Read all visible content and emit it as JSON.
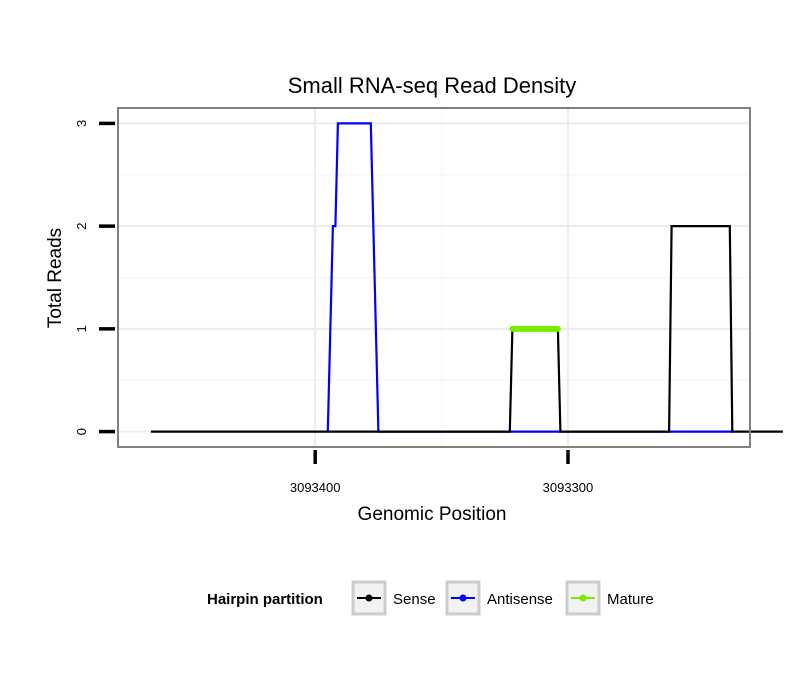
{
  "chart_data": {
    "type": "line",
    "title": "Small RNA-seq Read Density",
    "xlabel": "Genomic Position",
    "ylabel": "Total Reads",
    "x_reversed": true,
    "xlim": [
      3093478,
      3093228
    ],
    "ylim": [
      -0.15,
      3.15
    ],
    "x_ticks": [
      3093400,
      3093300
    ],
    "x_tick_labels": [
      "3093400",
      "3093300"
    ],
    "y_ticks": [
      0,
      1,
      2,
      3
    ],
    "y_tick_labels": [
      "0",
      "1",
      "2",
      "3"
    ],
    "grid": true,
    "legend": {
      "title": "Hairpin partition",
      "position": "bottom",
      "entries": [
        {
          "name": "Sense",
          "color": "#000000"
        },
        {
          "name": "Antisense",
          "color": "#0000ff"
        },
        {
          "name": "Mature",
          "color": "#77ee00"
        }
      ]
    },
    "series": [
      {
        "name": "Sense",
        "color": "#000000",
        "x": [
          3093465,
          3093323,
          3093322,
          3093304,
          3093303,
          3093260,
          3093259,
          3093236,
          3093235,
          3093215
        ],
        "y": [
          0,
          0,
          1,
          1,
          0,
          0,
          2,
          2,
          0,
          0
        ]
      },
      {
        "name": "Antisense",
        "color": "#0000ff",
        "x": [
          3093395,
          3093393,
          3093392,
          3093391,
          3093390,
          3093378,
          3093375,
          3093323,
          3093303,
          3093260,
          3093235
        ],
        "y": [
          0,
          2,
          2,
          3,
          3,
          3,
          0,
          0,
          0,
          0,
          0
        ]
      },
      {
        "name": "Mature",
        "color": "#77ee00",
        "x": [
          3093322,
          3093304
        ],
        "y": [
          1,
          1
        ]
      }
    ]
  }
}
